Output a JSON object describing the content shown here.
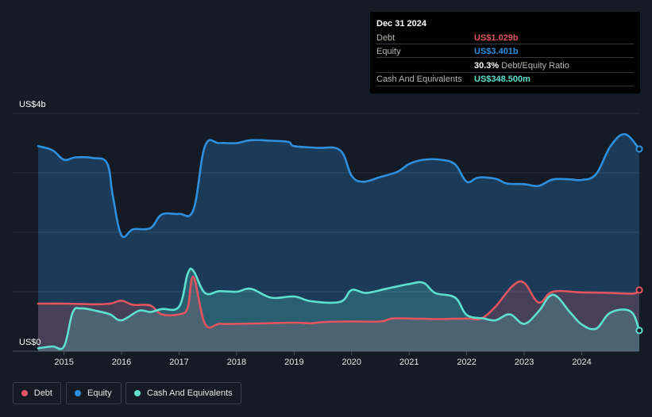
{
  "tooltip": {
    "date": "Dec 31 2024",
    "debt_label": "Debt",
    "debt_value": "US$1.029b",
    "equity_label": "Equity",
    "equity_value": "US$3.401b",
    "ratio_value": "30.3%",
    "ratio_label": "Debt/Equity Ratio",
    "cash_label": "Cash And Equivalents",
    "cash_value": "US$348.500m"
  },
  "legend": {
    "debt": "Debt",
    "equity": "Equity",
    "cash": "Cash And Equivalents"
  },
  "colors": {
    "debt": "#e2545e",
    "equity": "#2e8fdf",
    "cash": "#5ee0d0",
    "background": "#151b24"
  },
  "chart_data": {
    "type": "area",
    "ylabel_top": "US$4b",
    "ylabel_bottom": "US$0",
    "ylim": [
      0,
      4
    ],
    "xlim": [
      2014.55,
      2025.0
    ],
    "x_ticks": [
      "2015",
      "2016",
      "2017",
      "2018",
      "2019",
      "2020",
      "2021",
      "2022",
      "2023",
      "2024"
    ],
    "grid": true,
    "legend_position": "bottom-left",
    "series": [
      {
        "name": "Equity",
        "points": [
          [
            2014.55,
            3.45
          ],
          [
            2014.8,
            3.38
          ],
          [
            2015.0,
            3.22
          ],
          [
            2015.2,
            3.26
          ],
          [
            2015.5,
            3.25
          ],
          [
            2015.75,
            3.16
          ],
          [
            2015.85,
            2.6
          ],
          [
            2016.0,
            1.95
          ],
          [
            2016.2,
            2.05
          ],
          [
            2016.5,
            2.07
          ],
          [
            2016.7,
            2.3
          ],
          [
            2017.0,
            2.31
          ],
          [
            2017.25,
            2.38
          ],
          [
            2017.45,
            3.45
          ],
          [
            2017.7,
            3.5
          ],
          [
            2018.0,
            3.5
          ],
          [
            2018.25,
            3.55
          ],
          [
            2018.6,
            3.54
          ],
          [
            2018.9,
            3.52
          ],
          [
            2019.0,
            3.45
          ],
          [
            2019.4,
            3.42
          ],
          [
            2019.8,
            3.38
          ],
          [
            2020.0,
            2.95
          ],
          [
            2020.2,
            2.85
          ],
          [
            2020.5,
            2.93
          ],
          [
            2020.8,
            3.02
          ],
          [
            2021.0,
            3.15
          ],
          [
            2021.25,
            3.22
          ],
          [
            2021.55,
            3.22
          ],
          [
            2021.8,
            3.14
          ],
          [
            2022.0,
            2.85
          ],
          [
            2022.2,
            2.92
          ],
          [
            2022.5,
            2.9
          ],
          [
            2022.7,
            2.82
          ],
          [
            2023.0,
            2.81
          ],
          [
            2023.25,
            2.78
          ],
          [
            2023.5,
            2.89
          ],
          [
            2023.8,
            2.89
          ],
          [
            2024.0,
            2.88
          ],
          [
            2024.25,
            2.98
          ],
          [
            2024.5,
            3.45
          ],
          [
            2024.75,
            3.65
          ],
          [
            2025.0,
            3.401
          ]
        ]
      },
      {
        "name": "Debt",
        "points": [
          [
            2014.55,
            0.8
          ],
          [
            2015.0,
            0.8
          ],
          [
            2015.5,
            0.79
          ],
          [
            2015.8,
            0.8
          ],
          [
            2016.0,
            0.85
          ],
          [
            2016.2,
            0.78
          ],
          [
            2016.5,
            0.77
          ],
          [
            2016.7,
            0.62
          ],
          [
            2017.0,
            0.62
          ],
          [
            2017.15,
            0.73
          ],
          [
            2017.25,
            1.25
          ],
          [
            2017.45,
            0.46
          ],
          [
            2017.7,
            0.46
          ],
          [
            2018.0,
            0.46
          ],
          [
            2018.5,
            0.47
          ],
          [
            2019.0,
            0.48
          ],
          [
            2019.3,
            0.47
          ],
          [
            2019.5,
            0.49
          ],
          [
            2020.0,
            0.5
          ],
          [
            2020.5,
            0.5
          ],
          [
            2020.7,
            0.55
          ],
          [
            2021.0,
            0.55
          ],
          [
            2021.5,
            0.54
          ],
          [
            2022.0,
            0.55
          ],
          [
            2022.25,
            0.55
          ],
          [
            2022.5,
            0.75
          ],
          [
            2022.8,
            1.1
          ],
          [
            2023.0,
            1.15
          ],
          [
            2023.25,
            0.82
          ],
          [
            2023.5,
            1.0
          ],
          [
            2024.0,
            0.99
          ],
          [
            2024.5,
            0.98
          ],
          [
            2024.9,
            0.97
          ],
          [
            2025.0,
            1.029
          ]
        ]
      },
      {
        "name": "Cash And Equivalents",
        "points": [
          [
            2014.55,
            0.05
          ],
          [
            2014.8,
            0.08
          ],
          [
            2015.0,
            0.08
          ],
          [
            2015.15,
            0.65
          ],
          [
            2015.3,
            0.72
          ],
          [
            2015.6,
            0.67
          ],
          [
            2015.8,
            0.62
          ],
          [
            2016.0,
            0.52
          ],
          [
            2016.3,
            0.68
          ],
          [
            2016.5,
            0.66
          ],
          [
            2016.7,
            0.71
          ],
          [
            2017.0,
            0.75
          ],
          [
            2017.15,
            1.3
          ],
          [
            2017.25,
            1.35
          ],
          [
            2017.45,
            0.98
          ],
          [
            2017.7,
            1.01
          ],
          [
            2018.0,
            1.0
          ],
          [
            2018.25,
            1.05
          ],
          [
            2018.6,
            0.9
          ],
          [
            2019.0,
            0.92
          ],
          [
            2019.3,
            0.84
          ],
          [
            2019.8,
            0.83
          ],
          [
            2020.0,
            1.03
          ],
          [
            2020.25,
            0.98
          ],
          [
            2020.6,
            1.05
          ],
          [
            2021.0,
            1.13
          ],
          [
            2021.25,
            1.15
          ],
          [
            2021.45,
            0.98
          ],
          [
            2021.8,
            0.9
          ],
          [
            2022.0,
            0.61
          ],
          [
            2022.3,
            0.55
          ],
          [
            2022.5,
            0.52
          ],
          [
            2022.75,
            0.62
          ],
          [
            2023.0,
            0.46
          ],
          [
            2023.25,
            0.67
          ],
          [
            2023.5,
            0.95
          ],
          [
            2023.8,
            0.65
          ],
          [
            2024.0,
            0.45
          ],
          [
            2024.25,
            0.38
          ],
          [
            2024.5,
            0.65
          ],
          [
            2024.85,
            0.67
          ],
          [
            2025.0,
            0.3485
          ]
        ]
      }
    ]
  }
}
